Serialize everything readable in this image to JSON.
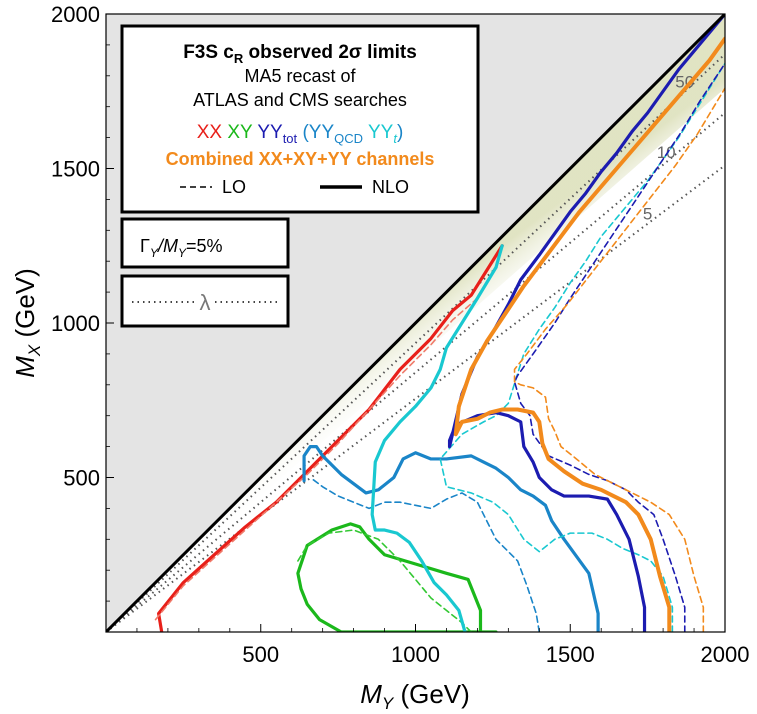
{
  "chart_data": {
    "type": "line",
    "xlabel_main": "M",
    "xlabel_sub": "Y",
    "xlabel_unit": "(GeV)",
    "ylabel_main": "M",
    "ylabel_sub": "X",
    "ylabel_unit": "(GeV)",
    "xlim": [
      0,
      2000
    ],
    "ylim": [
      0,
      2000
    ],
    "xticks": [
      500,
      1000,
      1500,
      2000
    ],
    "yticks": [
      500,
      1000,
      1500,
      2000
    ],
    "lambda_contours": [
      {
        "label": "50",
        "x": [
          0,
          2000
        ],
        "y": [
          0,
          1870
        ]
      },
      {
        "label": "10",
        "x": [
          0,
          2000
        ],
        "y": [
          0,
          1680
        ]
      },
      {
        "label": "5",
        "x": [
          0,
          2000
        ],
        "y": [
          0,
          1510
        ]
      }
    ],
    "series": [
      {
        "name": "XX NLO",
        "color": "#e8201a",
        "style": "solid",
        "x": [
          180,
          170,
          250,
          350,
          450,
          550,
          650,
          750,
          850,
          950,
          1050,
          1120,
          1180,
          1230,
          1280
        ],
        "y": [
          0,
          60,
          160,
          250,
          340,
          420,
          520,
          620,
          720,
          850,
          950,
          1040,
          1090,
          1170,
          1250
        ]
      },
      {
        "name": "XX LO",
        "color": "#f07a6a",
        "style": "dashed",
        "x": [
          160,
          250,
          350,
          450,
          550,
          650,
          750,
          850,
          950,
          1050,
          1120,
          1200
        ],
        "y": [
          40,
          150,
          240,
          330,
          420,
          510,
          610,
          720,
          830,
          930,
          1010,
          1080
        ]
      },
      {
        "name": "XY NLO",
        "color": "#1bb81b",
        "style": "solid",
        "x": [
          1210,
          1210,
          1170,
          1100,
          1000,
          900,
          850,
          820,
          790,
          730,
          650,
          620,
          630,
          650,
          690,
          760,
          850,
          950,
          1050,
          1150,
          1260
        ],
        "y": [
          0,
          70,
          170,
          190,
          220,
          250,
          300,
          340,
          350,
          330,
          280,
          190,
          140,
          90,
          40,
          0,
          0,
          0,
          0,
          0,
          0
        ]
      },
      {
        "name": "XY LO",
        "color": "#33c833",
        "style": "dashed",
        "x": [
          1180,
          1150,
          1100,
          1050,
          1000,
          950,
          880,
          800,
          720,
          650,
          620
        ],
        "y": [
          0,
          30,
          70,
          110,
          170,
          230,
          300,
          330,
          320,
          280,
          230
        ]
      },
      {
        "name": "YY_QCD NLO",
        "color": "#1a85c8",
        "style": "solid",
        "x": [
          1590,
          1590,
          1560,
          1480,
          1440,
          1420,
          1380,
          1340,
          1300,
          1260,
          1220,
          1180,
          1100,
          1050,
          1000,
          960,
          930,
          880,
          840,
          800,
          760,
          730,
          700,
          680,
          660,
          640,
          640
        ],
        "y": [
          0,
          60,
          190,
          300,
          360,
          410,
          440,
          460,
          500,
          530,
          550,
          570,
          560,
          560,
          580,
          560,
          500,
          460,
          450,
          480,
          510,
          540,
          570,
          600,
          600,
          570,
          490
        ]
      },
      {
        "name": "YY_QCD LO",
        "color": "#1a85c8",
        "style": "dashed",
        "x": [
          1400,
          1390,
          1360,
          1330,
          1290,
          1260,
          1230,
          1200,
          1150,
          1100,
          1050,
          1000,
          950,
          900,
          850,
          800,
          750,
          700,
          660
        ],
        "y": [
          0,
          60,
          150,
          230,
          270,
          300,
          360,
          420,
          450,
          430,
          400,
          410,
          420,
          420,
          400,
          420,
          440,
          470,
          500
        ]
      },
      {
        "name": "YY_t NLO",
        "color": "#19c8d0",
        "style": "solid",
        "x": [
          1160,
          1140,
          1100,
          1060,
          1020,
          980,
          940,
          900,
          870,
          860,
          870,
          900,
          950,
          1000,
          1050,
          1080,
          1100,
          1150,
          1200,
          1260,
          1280
        ],
        "y": [
          0,
          70,
          120,
          160,
          230,
          290,
          320,
          330,
          330,
          380,
          550,
          620,
          680,
          730,
          790,
          850,
          920,
          1000,
          1080,
          1180,
          1250
        ]
      },
      {
        "name": "YY_t LO",
        "color": "#19c8d0",
        "style": "dashed",
        "x": [
          1830,
          1830,
          1800,
          1760,
          1720,
          1670,
          1620,
          1570,
          1500,
          1450,
          1400,
          1350,
          1300,
          1250,
          1180,
          1100,
          1080,
          1150,
          1220,
          1260,
          1300,
          1350,
          1400,
          1450,
          1500,
          1550,
          1600,
          1650,
          1700,
          1750,
          1800,
          1850,
          1900,
          1950,
          2000
        ],
        "y": [
          0,
          80,
          180,
          230,
          250,
          270,
          300,
          320,
          320,
          300,
          260,
          300,
          380,
          420,
          450,
          470,
          560,
          640,
          680,
          700,
          740,
          900,
          980,
          1050,
          1130,
          1200,
          1280,
          1340,
          1400,
          1460,
          1530,
          1600,
          1680,
          1760,
          1840
        ]
      },
      {
        "name": "YY_tot NLO",
        "color": "#1c1cb0",
        "style": "solid",
        "x": [
          1740,
          1740,
          1720,
          1690,
          1650,
          1620,
          1560,
          1480,
          1440,
          1400,
          1380,
          1350,
          1340,
          1300,
          1260,
          1200,
          1130,
          1110,
          1110,
          1150,
          1200,
          1250,
          1300,
          1340,
          1400,
          1450,
          1500,
          1550,
          1600,
          1650,
          1700,
          1750,
          1800,
          1850,
          1900,
          1950,
          2000
        ],
        "y": [
          0,
          80,
          180,
          300,
          380,
          430,
          440,
          440,
          460,
          500,
          550,
          600,
          680,
          700,
          710,
          700,
          670,
          620,
          600,
          770,
          890,
          970,
          1060,
          1140,
          1220,
          1290,
          1360,
          1420,
          1490,
          1550,
          1620,
          1680,
          1750,
          1820,
          1880,
          1940,
          2000
        ]
      },
      {
        "name": "YY_tot LO",
        "color": "#1c1cb0",
        "style": "dashed",
        "x": [
          1870,
          1870,
          1840,
          1800,
          1770,
          1720,
          1680,
          1620,
          1560,
          1500,
          1430,
          1380,
          1370,
          1340,
          1320,
          1330,
          1380,
          1450,
          1500,
          1560,
          1620,
          1680,
          1740,
          1800,
          1860,
          1920,
          2000
        ],
        "y": [
          0,
          80,
          180,
          300,
          380,
          420,
          460,
          490,
          510,
          540,
          570,
          640,
          700,
          740,
          810,
          830,
          900,
          1000,
          1080,
          1170,
          1260,
          1350,
          1440,
          1530,
          1620,
          1720,
          1840
        ]
      },
      {
        "name": "Combined NLO",
        "color": "#f28a1c",
        "style": "solid",
        "x": [
          1820,
          1820,
          1790,
          1760,
          1720,
          1680,
          1640,
          1600,
          1540,
          1480,
          1430,
          1410,
          1400,
          1380,
          1330,
          1280,
          1240,
          1200,
          1150,
          1130,
          1140,
          1180,
          1230,
          1290,
          1350,
          1410,
          1470,
          1530,
          1590,
          1650,
          1710,
          1770,
          1830,
          1890,
          1950,
          2000
        ],
        "y": [
          0,
          80,
          180,
          300,
          380,
          420,
          440,
          460,
          480,
          520,
          560,
          610,
          680,
          710,
          720,
          720,
          710,
          690,
          680,
          640,
          730,
          850,
          940,
          1030,
          1120,
          1200,
          1280,
          1360,
          1430,
          1500,
          1570,
          1640,
          1710,
          1780,
          1850,
          1920
        ]
      },
      {
        "name": "Combined LO",
        "color": "#f28a1c",
        "style": "dashed",
        "x": [
          1930,
          1930,
          1900,
          1870,
          1820,
          1760,
          1700,
          1640,
          1580,
          1520,
          1470,
          1450,
          1430,
          1420,
          1380,
          1340,
          1320,
          1320,
          1360,
          1420,
          1490,
          1560,
          1630,
          1700,
          1770,
          1840,
          1910,
          2000
        ],
        "y": [
          0,
          80,
          180,
          300,
          380,
          420,
          450,
          480,
          510,
          560,
          600,
          650,
          690,
          760,
          790,
          800,
          810,
          850,
          900,
          980,
          1060,
          1150,
          1240,
          1330,
          1420,
          1510,
          1610,
          1760
        ]
      }
    ]
  },
  "legend": {
    "title_main": "F3S c",
    "title_sub": "R",
    "title_rest": " observed 2σ limits",
    "line2": "MA5 recast of",
    "line3": "ATLAS and CMS searches",
    "xx": "XX",
    "xy": "XY",
    "yy_tot_main": "YY",
    "yy_tot_sub": "tot",
    "paren_open": "(",
    "yy_qcd_main": "YY",
    "yy_qcd_sub": "QCD",
    "yy_t_main": "YY",
    "yy_t_sub": "t",
    "paren_close": ")",
    "combined": "Combined XX+XY+YY channels",
    "lo": "LO",
    "nlo": "NLO"
  },
  "width_box": {
    "gamma": "Γ",
    "sub_y": "Y",
    "slash_m": "/M",
    "sub_y2": "Y",
    "value": "=5%"
  },
  "lambda_box": {
    "symbol": "λ"
  },
  "colors": {
    "xx": "#e8201a",
    "xy": "#1bb81b",
    "yy_tot": "#1c1cb0",
    "yy_qcd": "#1a85c8",
    "yy_t": "#19c8d0",
    "combined": "#f28a1c",
    "excluded_region": "#e4e4e4"
  }
}
